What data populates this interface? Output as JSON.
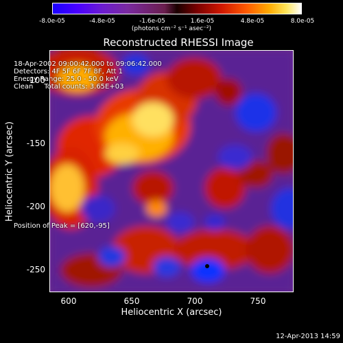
{
  "colorbar": {
    "ticks": [
      "-8.0e-05",
      "-4.8e-05",
      "-1.6e-05",
      "1.6e-05",
      "4.8e-05",
      "8.0e-05"
    ],
    "unit": "(photons cm⁻² s⁻¹ asec⁻²)"
  },
  "title": "Reconstructed RHESSI Image",
  "info": {
    "line1": "18-Apr-2002 09:00:42.000 to 09:06:42.000",
    "line2": "Detectors: 4F 5F 6F 7F 8F, Att 1",
    "line3": "Energy Range: 25.0 - 50.0 keV",
    "line4": "Clean     Total counts: 3.65E+03"
  },
  "peak": "Position of Peak = [620,-95]",
  "axes": {
    "xlabel": "Heliocentric X (arcsec)",
    "ylabel": "Heliocentric Y (arcsec)",
    "xticks": [
      "600",
      "650",
      "700",
      "750"
    ],
    "yticks": [
      "-100",
      "-150",
      "-200",
      "-250"
    ]
  },
  "timestamp": "12-Apr-2013 14:59"
}
